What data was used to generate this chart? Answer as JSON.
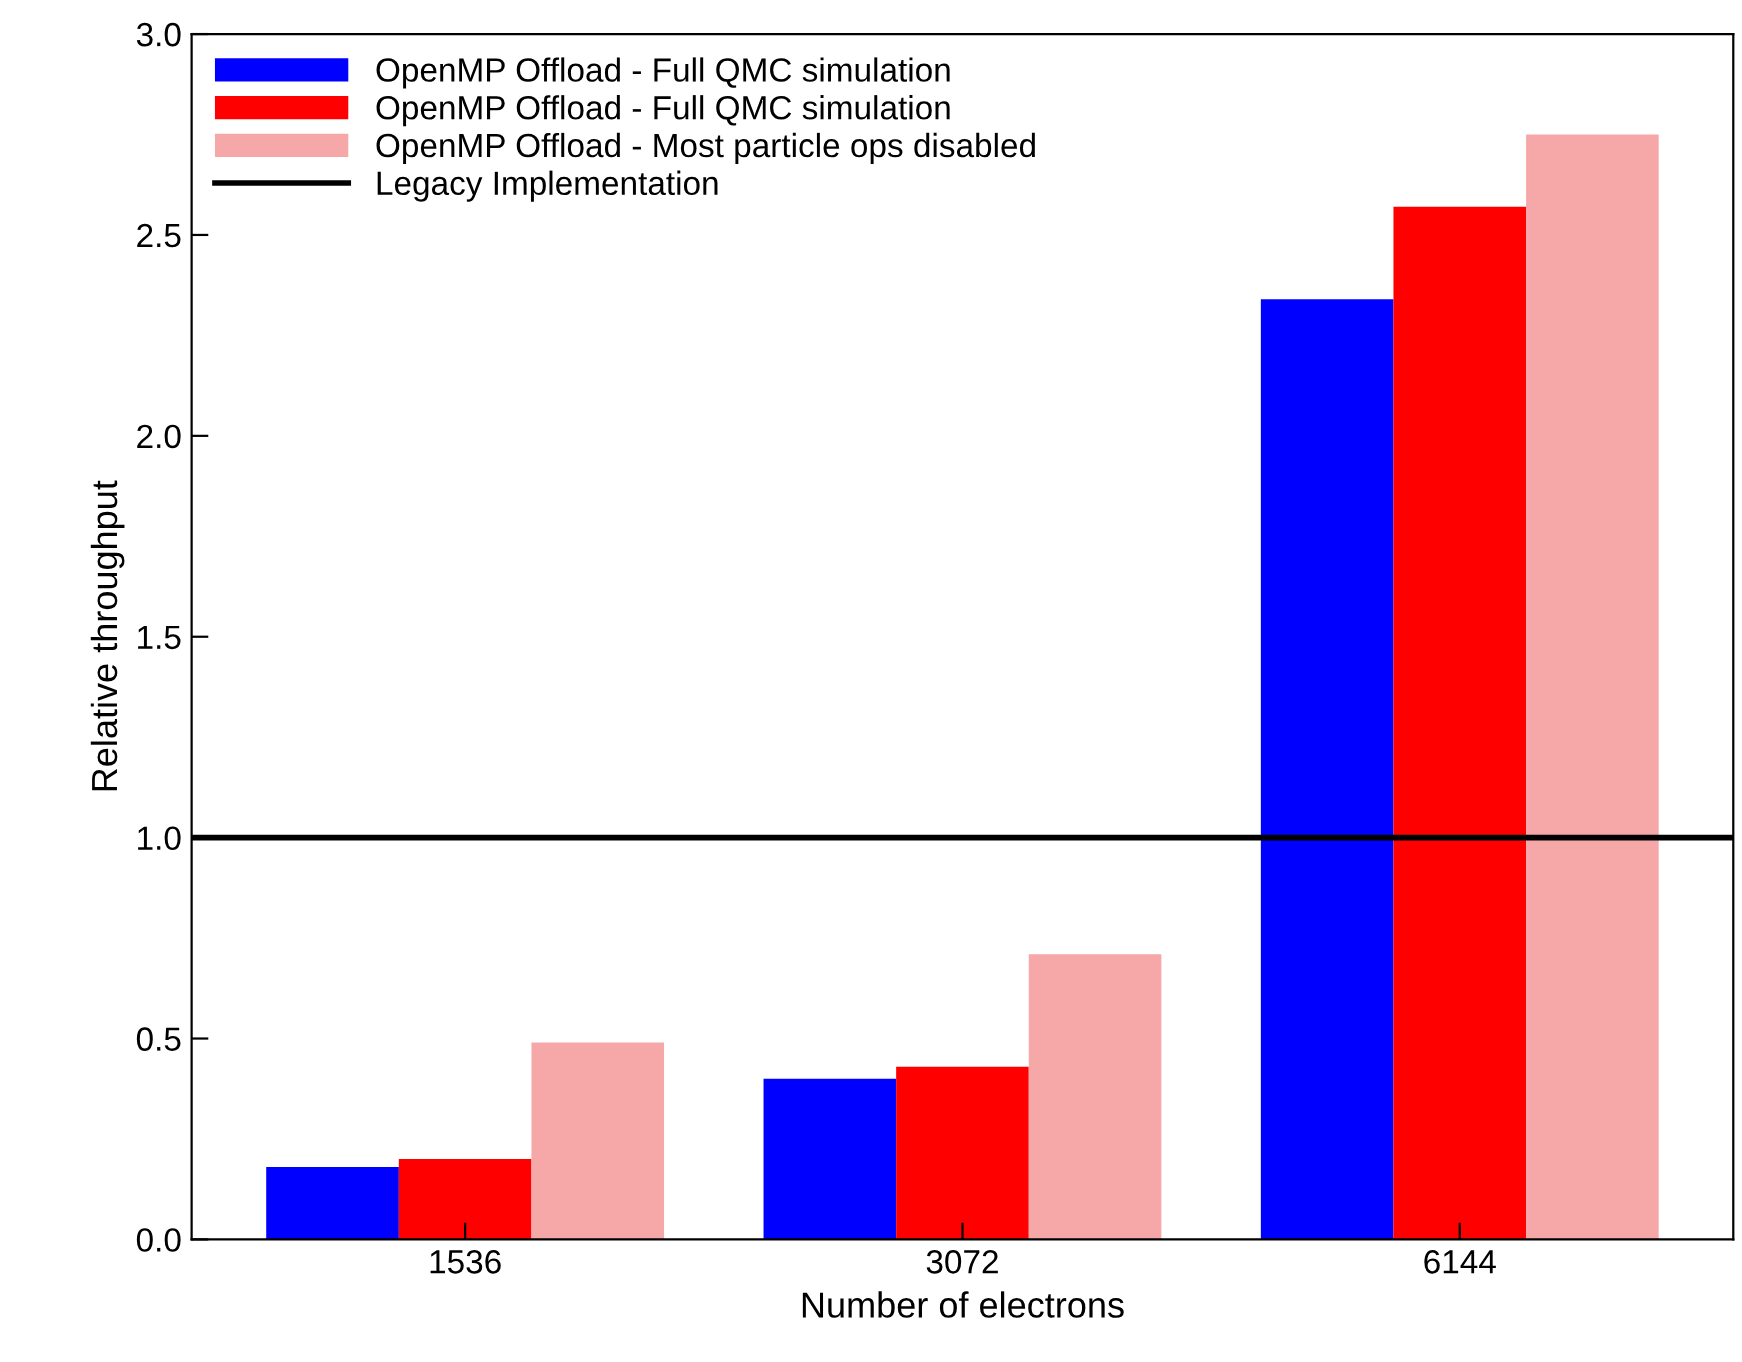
{
  "chart_data": {
    "type": "bar",
    "xlabel": "Number of electrons",
    "ylabel": "Relative throughput",
    "categories": [
      "1536",
      "3072",
      "6144"
    ],
    "series": [
      {
        "name": "OpenMP Offload - Full QMC simulation",
        "color": "#0000ff",
        "values": [
          0.18,
          0.4,
          2.34
        ]
      },
      {
        "name": "OpenMP Offload - Full QMC simulation",
        "color": "#ff0000",
        "values": [
          0.2,
          0.43,
          2.57
        ]
      },
      {
        "name": "OpenMP Offload - Most particle ops disabled",
        "color": "#f6a8a8",
        "values": [
          0.49,
          0.71,
          2.75
        ]
      }
    ],
    "ref_lines": [
      {
        "axis": "y",
        "value": 1.0,
        "label": "Legacy Implementation",
        "color": "#000000",
        "line_style": "solid"
      }
    ],
    "ylim": [
      0,
      3
    ],
    "yticks": [
      {
        "value": 0,
        "label": "0.0"
      },
      {
        "value": 0.5,
        "label": "0.5"
      },
      {
        "value": 1,
        "label": "1.0"
      },
      {
        "value": 1.5,
        "label": "1.5"
      },
      {
        "value": 2,
        "label": "2.0"
      },
      {
        "value": 2.5,
        "label": "2.5"
      },
      {
        "value": 3,
        "label": "3.0"
      }
    ],
    "legend": "top left",
    "grid": false
  }
}
